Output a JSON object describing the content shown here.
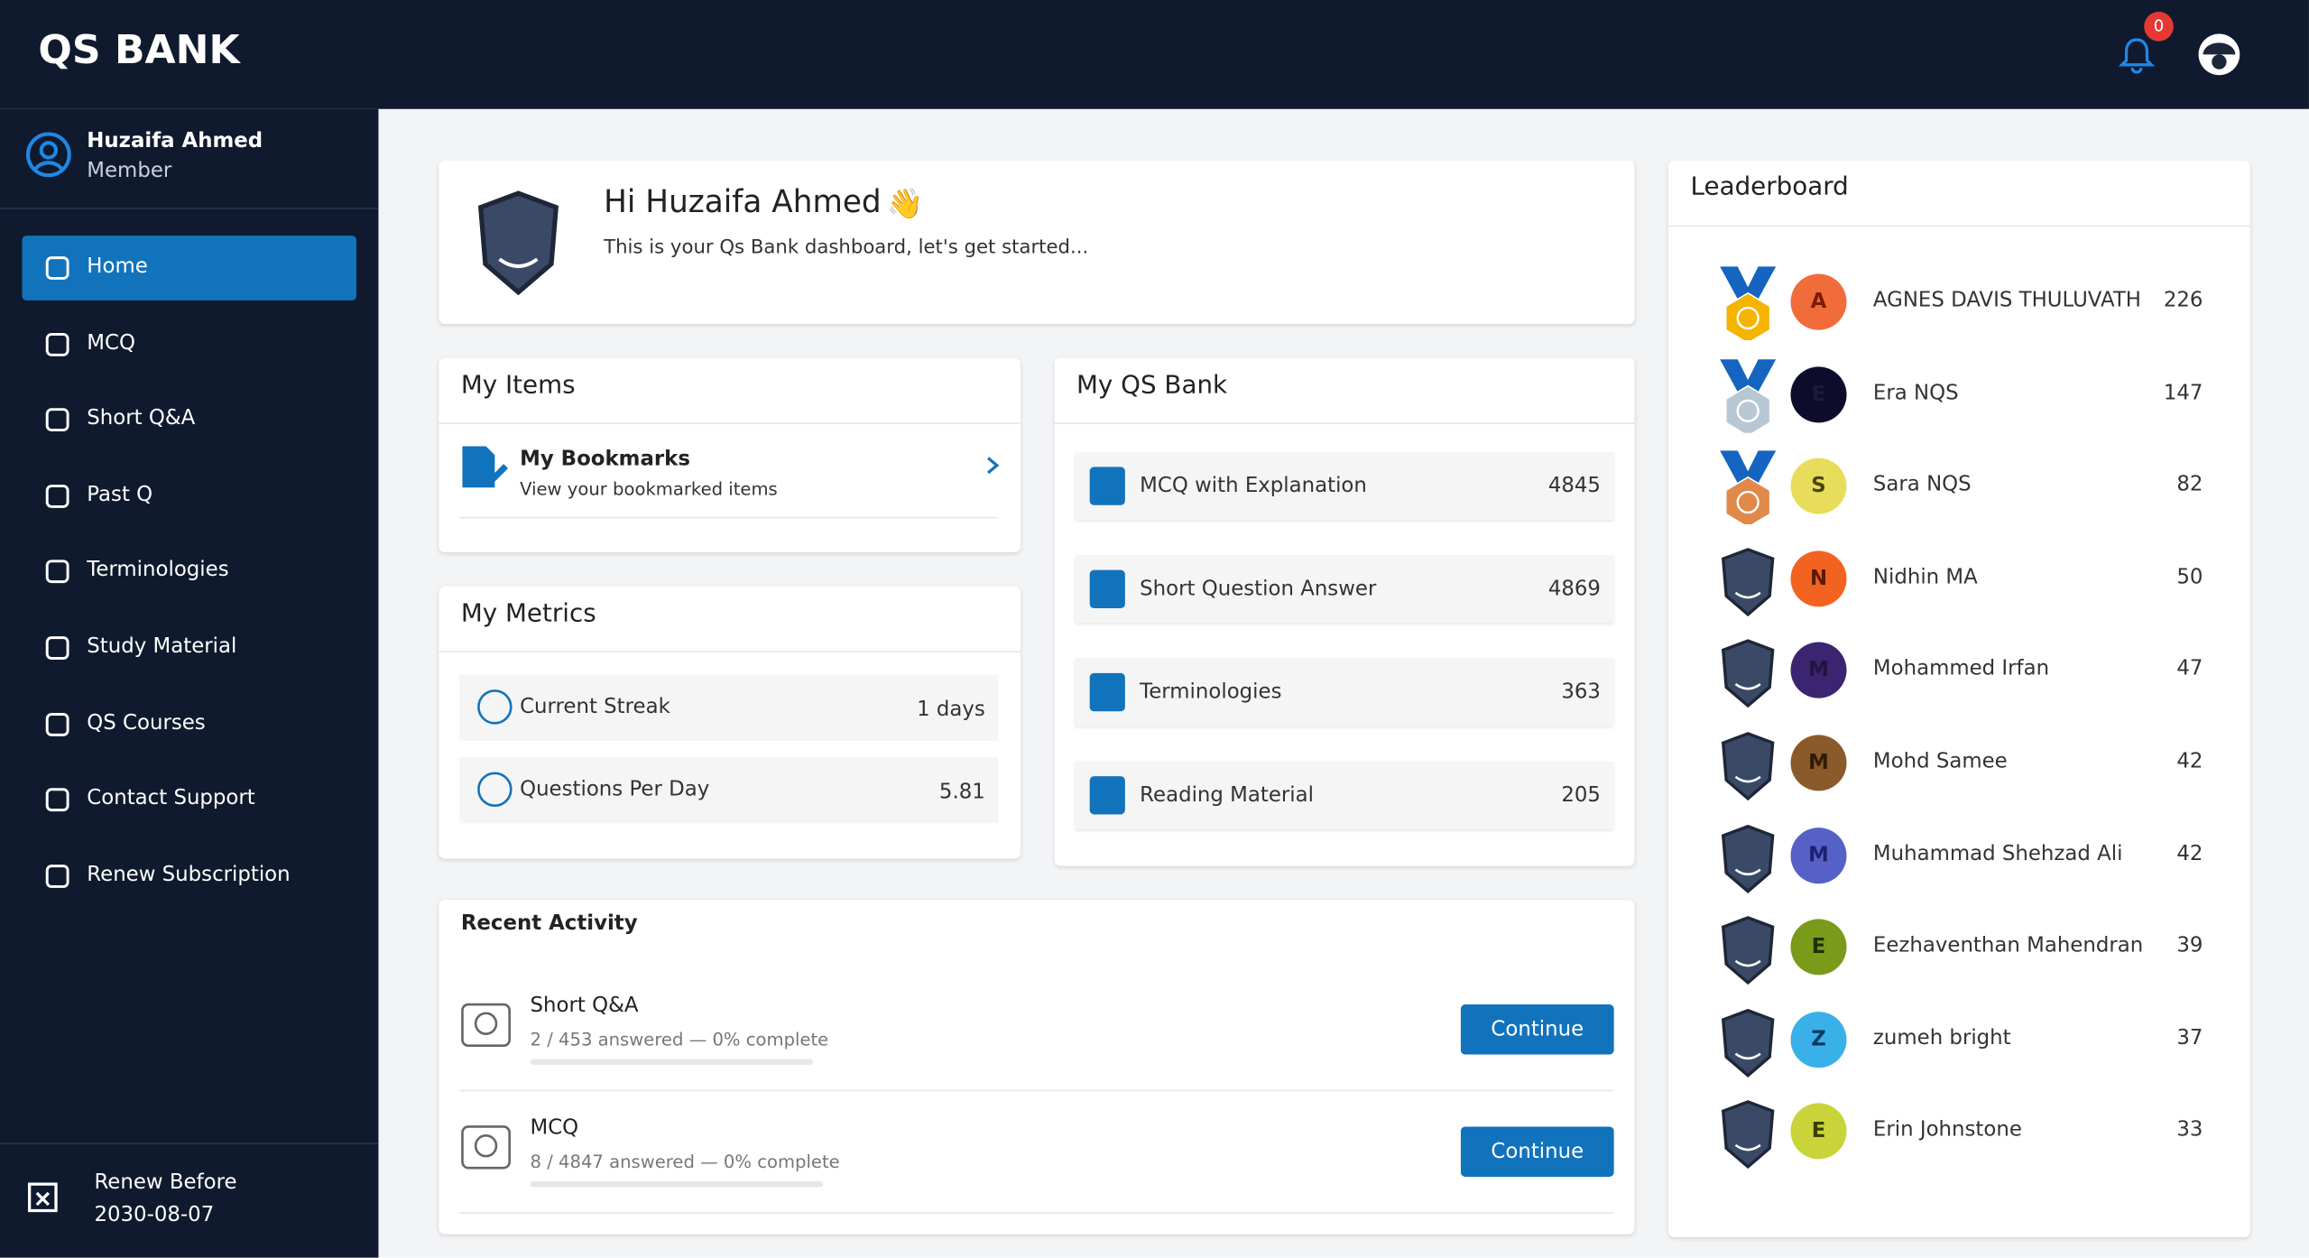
{
  "header": {
    "brand": "QS BANK",
    "notifications": "0"
  },
  "sidebar": {
    "user_name": "Huzaifa Ahmed",
    "user_role": "Member",
    "nav": [
      "Home",
      "MCQ",
      "Short Q&A",
      "Past Q",
      "Terminologies",
      "Study Material",
      "QS Courses",
      "Contact Support",
      "Renew Subscription"
    ],
    "renew_label": "Renew Before",
    "renew_date": "2030-08-07"
  },
  "welcome": {
    "title": "Hi Huzaifa Ahmed",
    "subtitle": "This is your Qs Bank dashboard, let's get started..."
  },
  "my_items": {
    "title": "My Items",
    "item_title": "My Bookmarks",
    "item_subtitle": "View your bookmarked items"
  },
  "my_metrics": {
    "title": "My Metrics",
    "rows": [
      {
        "label": "Current Streak",
        "value": "1 days"
      },
      {
        "label": "Questions Per Day",
        "value": "5.81"
      }
    ]
  },
  "my_qs_bank": {
    "title": "My QS Bank",
    "rows": [
      {
        "label": "MCQ with Explanation",
        "value": "4845"
      },
      {
        "label": "Short Question Answer",
        "value": "4869"
      },
      {
        "label": "Terminologies",
        "value": "363"
      },
      {
        "label": "Reading Material",
        "value": "205"
      }
    ]
  },
  "recent_activity": {
    "title": "Recent Activity",
    "items": [
      {
        "title": "Short Q&A",
        "progress": "2 / 453 answered — 0% complete",
        "button": "Continue"
      },
      {
        "title": "MCQ",
        "progress": "8 / 4847 answered — 0% complete",
        "button": "Continue"
      }
    ]
  },
  "leaderboard": {
    "title": "Leaderboard",
    "rows": [
      {
        "initial": "A",
        "name": "AGNES DAVIS THULUVATH",
        "score": "226"
      },
      {
        "initial": "E",
        "name": "Era NQS",
        "score": "147"
      },
      {
        "initial": "S",
        "name": "Sara NQS",
        "score": "82"
      },
      {
        "initial": "N",
        "name": "Nidhin MA",
        "score": "50"
      },
      {
        "initial": "M",
        "name": "Mohammed Irfan",
        "score": "47"
      },
      {
        "initial": "M",
        "name": "Mohd Samee",
        "score": "42"
      },
      {
        "initial": "M",
        "name": "Muhammad Shehzad Ali",
        "score": "42"
      },
      {
        "initial": "E",
        "name": "Eezhaventhan Mahendran",
        "score": "39"
      },
      {
        "initial": "Z",
        "name": "zumeh bright",
        "score": "37"
      },
      {
        "initial": "E",
        "name": "Erin Johnstone",
        "score": "33"
      }
    ]
  }
}
